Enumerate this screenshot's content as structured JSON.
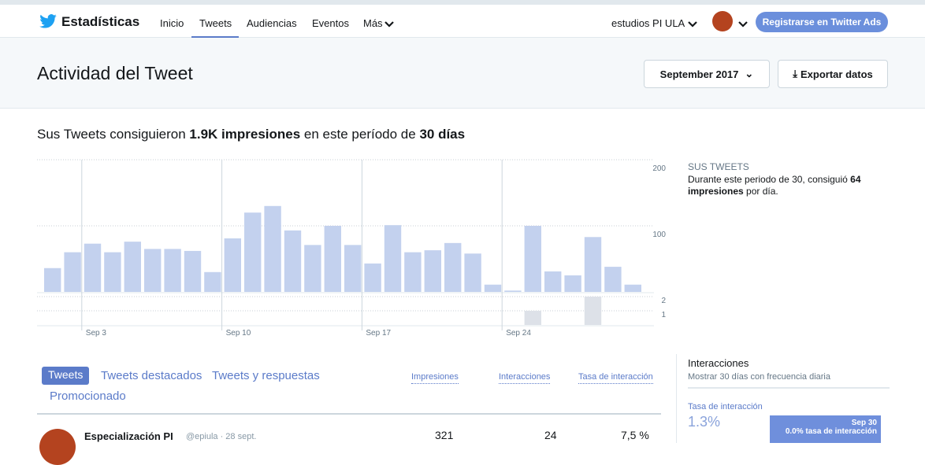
{
  "nav": {
    "brand": "Estadísticas",
    "links": [
      "Inicio",
      "Tweets",
      "Audiencias",
      "Eventos",
      "Más"
    ],
    "account": "estudios PI ULA",
    "ads_button": "Registrarse en Twitter Ads"
  },
  "header": {
    "title": "Actividad del Tweet",
    "month": "September 2017",
    "export": "Exportar datos"
  },
  "summary": {
    "parts": [
      "Sus Tweets consiguieron ",
      "1.9K impresiones",
      " en este período de ",
      "30 días"
    ]
  },
  "side": {
    "title": "SUS TWEETS",
    "parts": [
      "Durante este periodo de 30, consiguió ",
      "64",
      " impresiones",
      " por día."
    ]
  },
  "chart_data": [
    {
      "type": "bar",
      "categories": [
        null,
        null,
        "Sep 3",
        null,
        null,
        null,
        null,
        null,
        null,
        "Sep 10",
        null,
        null,
        null,
        null,
        null,
        null,
        "Sep 17",
        null,
        null,
        null,
        null,
        null,
        null,
        "Sep 24",
        null,
        null,
        null,
        null,
        null,
        null
      ],
      "values": [
        36,
        60,
        73,
        60,
        76,
        65,
        65,
        62,
        30,
        81,
        120,
        130,
        93,
        71,
        100,
        71,
        43,
        101,
        60,
        63,
        74,
        58,
        11,
        2,
        100,
        31,
        25,
        83,
        38,
        11
      ],
      "color": "#c3d1ee",
      "ylim": [
        0,
        200
      ],
      "yticks": [
        100,
        200
      ],
      "grid": true
    },
    {
      "type": "bar",
      "values": [
        0,
        0,
        0,
        0,
        0,
        0,
        0,
        0,
        0,
        0,
        0,
        0,
        0,
        0,
        0,
        0,
        0,
        0,
        0,
        0,
        0,
        0,
        0,
        0,
        1,
        0,
        0,
        2,
        0,
        0
      ],
      "color": "#dde1e8",
      "ylim": [
        0,
        2
      ],
      "yticks": [
        1,
        2
      ],
      "grid": true
    }
  ],
  "tabs": [
    "Tweets",
    "Tweets destacados",
    "Tweets y respuestas",
    "Promocionado"
  ],
  "table": {
    "columns": [
      "Impresiones",
      "Interacciones",
      "Tasa de interacción"
    ],
    "rows": [
      {
        "author": "Especialización PI",
        "meta": "@epiula · 28 sept.",
        "cells": [
          "321",
          "24",
          "7,5 %"
        ]
      }
    ]
  },
  "interactions": {
    "title": "Interacciones",
    "subtitle": "Mostrar 30 días con frecuencia diaria",
    "rate_label": "Tasa de interacción",
    "rate": "1.3%",
    "tooltip_date": "Sep 30",
    "tooltip_text": "0.0% tasa de interacción"
  }
}
